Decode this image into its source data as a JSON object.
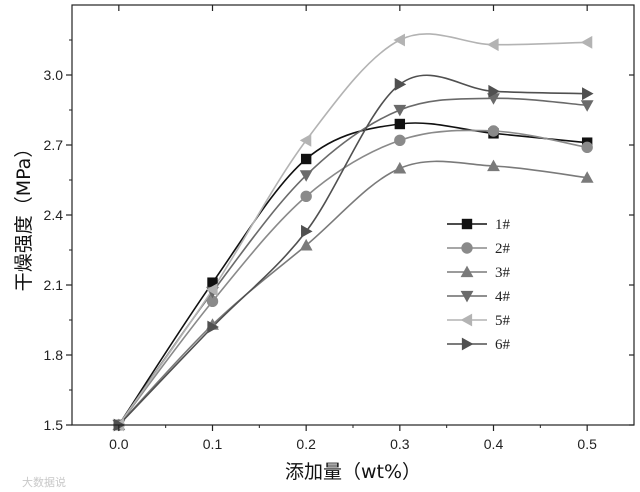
{
  "chart_data": {
    "type": "line",
    "title": "",
    "xlabel": "添加量（wt%）",
    "ylabel": "干燥强度（MPa）",
    "x": [
      0.0,
      0.1,
      0.2,
      0.3,
      0.4,
      0.5
    ],
    "xlim": [
      -0.05,
      0.55
    ],
    "ylim": [
      1.5,
      3.3
    ],
    "xticks": [
      "0.0",
      "0.1",
      "0.2",
      "0.3",
      "0.4",
      "0.5"
    ],
    "yticks": [
      "1.5",
      "1.8",
      "2.1",
      "2.4",
      "2.7",
      "3.0"
    ],
    "grid": false,
    "legend_position": "right",
    "series": [
      {
        "name": "1#",
        "marker": "square",
        "color": "#111111",
        "values": [
          1.5,
          2.11,
          2.64,
          2.79,
          2.75,
          2.71
        ]
      },
      {
        "name": "2#",
        "marker": "circle",
        "color": "#8a8a8a",
        "values": [
          1.5,
          2.03,
          2.48,
          2.72,
          2.76,
          2.69
        ]
      },
      {
        "name": "3#",
        "marker": "triangle-up",
        "color": "#7a7a7a",
        "values": [
          1.5,
          1.93,
          2.27,
          2.6,
          2.61,
          2.56
        ]
      },
      {
        "name": "4#",
        "marker": "triangle-down",
        "color": "#6a6a6a",
        "values": [
          1.5,
          2.07,
          2.57,
          2.85,
          2.9,
          2.87
        ]
      },
      {
        "name": "5#",
        "marker": "triangle-left",
        "color": "#b3b3b3",
        "values": [
          1.5,
          2.08,
          2.72,
          3.15,
          3.13,
          3.14
        ]
      },
      {
        "name": "6#",
        "marker": "triangle-right",
        "color": "#505050",
        "values": [
          1.5,
          1.92,
          2.33,
          2.96,
          2.93,
          2.92
        ]
      }
    ]
  },
  "watermark": "大数据说"
}
